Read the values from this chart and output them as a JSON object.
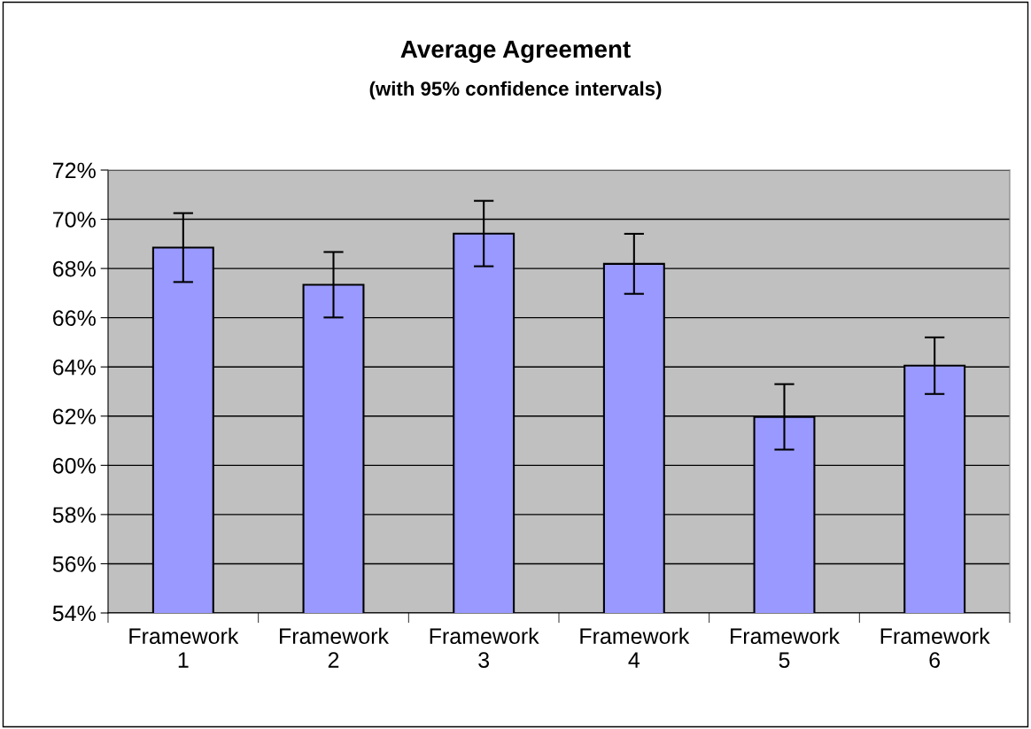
{
  "chart_data": {
    "type": "bar",
    "title": "Average Agreement",
    "subtitle": "(with 95% confidence intervals)",
    "categories": [
      "Framework\n1",
      "Framework\n2",
      "Framework\n3",
      "Framework\n4",
      "Framework\n5",
      "Framework\n6"
    ],
    "values": [
      68.85,
      67.34,
      69.42,
      68.19,
      61.97,
      64.05
    ],
    "errors": [
      1.4,
      1.33,
      1.33,
      1.22,
      1.33,
      1.15
    ],
    "color": "#9999ff",
    "ylim": [
      54,
      72
    ],
    "yticks": [
      {
        "value": 54,
        "label": "54%"
      },
      {
        "value": 56,
        "label": "56%"
      },
      {
        "value": 58,
        "label": "58%"
      },
      {
        "value": 60,
        "label": "60%"
      },
      {
        "value": 62,
        "label": "62%"
      },
      {
        "value": 64,
        "label": "64%"
      },
      {
        "value": 66,
        "label": "66%"
      },
      {
        "value": 68,
        "label": "68%"
      },
      {
        "value": 70,
        "label": "70%"
      },
      {
        "value": 72,
        "label": "72%"
      }
    ],
    "grid": "y",
    "legend": false
  }
}
